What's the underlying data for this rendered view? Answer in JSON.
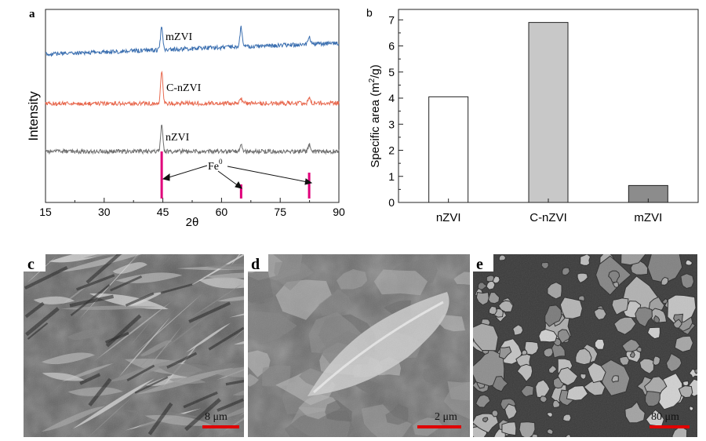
{
  "panels": {
    "a": "a",
    "b": "b",
    "c": "c",
    "d": "d",
    "e": "e"
  },
  "chart_data": [
    {
      "type": "line",
      "panel": "a",
      "xlabel": "2θ",
      "ylabel": "Intensity",
      "xlim": [
        15,
        90
      ],
      "xticks": [
        15,
        30,
        45,
        60,
        75,
        90
      ],
      "y_ticks_shown": false,
      "series": [
        {
          "name": "mZVI",
          "color": "#3b6fb0",
          "baseline": [
            -0.25,
            0.25
          ],
          "peaks": [
            {
              "x": 44.7,
              "h": 1.1
            },
            {
              "x": 65.0,
              "h": 0.9
            },
            {
              "x": 82.4,
              "h": 0.35
            }
          ]
        },
        {
          "name": "C-nZVI",
          "color": "#e8694f",
          "baseline": [
            0.0,
            0.02
          ],
          "peaks": [
            {
              "x": 44.7,
              "h": 1.6
            },
            {
              "x": 65.0,
              "h": 0.25
            },
            {
              "x": 82.4,
              "h": 0.3
            }
          ]
        },
        {
          "name": "nZVI",
          "color": "#6e6e6e",
          "baseline": [
            0.0,
            0.0
          ],
          "peaks": [
            {
              "x": 44.7,
              "h": 1.4
            },
            {
              "x": 65.0,
              "h": 0.35
            },
            {
              "x": 82.4,
              "h": 0.35
            }
          ]
        }
      ],
      "reference": {
        "label": "Fe",
        "superscript": "0",
        "color": "#e0007a",
        "positions": [
          44.7,
          65.0,
          82.4
        ],
        "heights": [
          1.0,
          0.3,
          0.55
        ]
      }
    },
    {
      "type": "bar",
      "panel": "b",
      "categories": [
        "nZVI",
        "C-nZVI",
        "mZVI"
      ],
      "values": [
        4.05,
        6.9,
        0.65
      ],
      "colors": [
        "#ffffff",
        "#c8c8c8",
        "#8c8c8c"
      ],
      "ylabel": "Specific area (m2/g)",
      "ylabel_parts": [
        "Specific area (m",
        "2",
        "/g)"
      ],
      "ylim": [
        0,
        7.4
      ],
      "yticks": [
        0,
        1,
        2,
        3,
        4,
        5,
        6,
        7
      ]
    }
  ],
  "sem_images": [
    {
      "panel": "c",
      "scale_bar": "8 μm",
      "bar_color": "#e00000"
    },
    {
      "panel": "d",
      "scale_bar": "2 μm",
      "bar_color": "#e00000"
    },
    {
      "panel": "e",
      "scale_bar": "80 μm",
      "bar_color": "#e00000"
    }
  ]
}
